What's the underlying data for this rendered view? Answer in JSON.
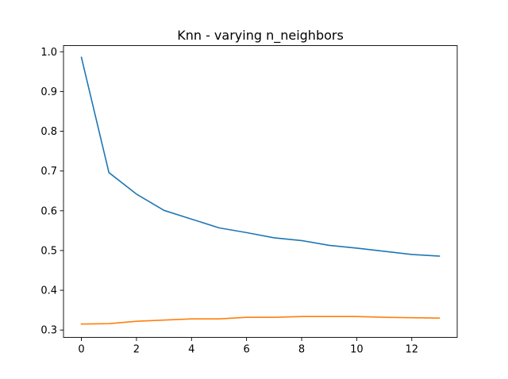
{
  "chart_data": {
    "type": "line",
    "title": "Knn - varying n_neighbors",
    "xlabel": "",
    "ylabel": "",
    "xlim": [
      -0.65,
      13.65
    ],
    "ylim": [
      0.2815,
      1.0155
    ],
    "x_ticks": [
      0,
      2,
      4,
      6,
      8,
      10,
      12
    ],
    "x_tick_labels": [
      "0",
      "2",
      "4",
      "6",
      "8",
      "10",
      "12"
    ],
    "y_ticks": [
      0.3,
      0.4,
      0.5,
      0.6,
      0.7,
      0.8,
      0.9,
      1.0
    ],
    "y_tick_labels": [
      "0.3",
      "0.4",
      "0.5",
      "0.6",
      "0.7",
      "0.8",
      "0.9",
      "1.0"
    ],
    "grid": false,
    "x": [
      0,
      1,
      2,
      3,
      4,
      5,
      6,
      7,
      8,
      9,
      10,
      11,
      12,
      13
    ],
    "series": [
      {
        "color": "#1f77b4",
        "values": [
          0.986,
          0.696,
          0.642,
          0.601,
          0.579,
          0.557,
          0.545,
          0.532,
          0.525,
          0.513,
          0.506,
          0.498,
          0.49,
          0.486
        ]
      },
      {
        "color": "#ff7f0e",
        "values": [
          0.315,
          0.316,
          0.322,
          0.325,
          0.328,
          0.328,
          0.332,
          0.332,
          0.334,
          0.334,
          0.334,
          0.332,
          0.331,
          0.33
        ]
      }
    ]
  }
}
